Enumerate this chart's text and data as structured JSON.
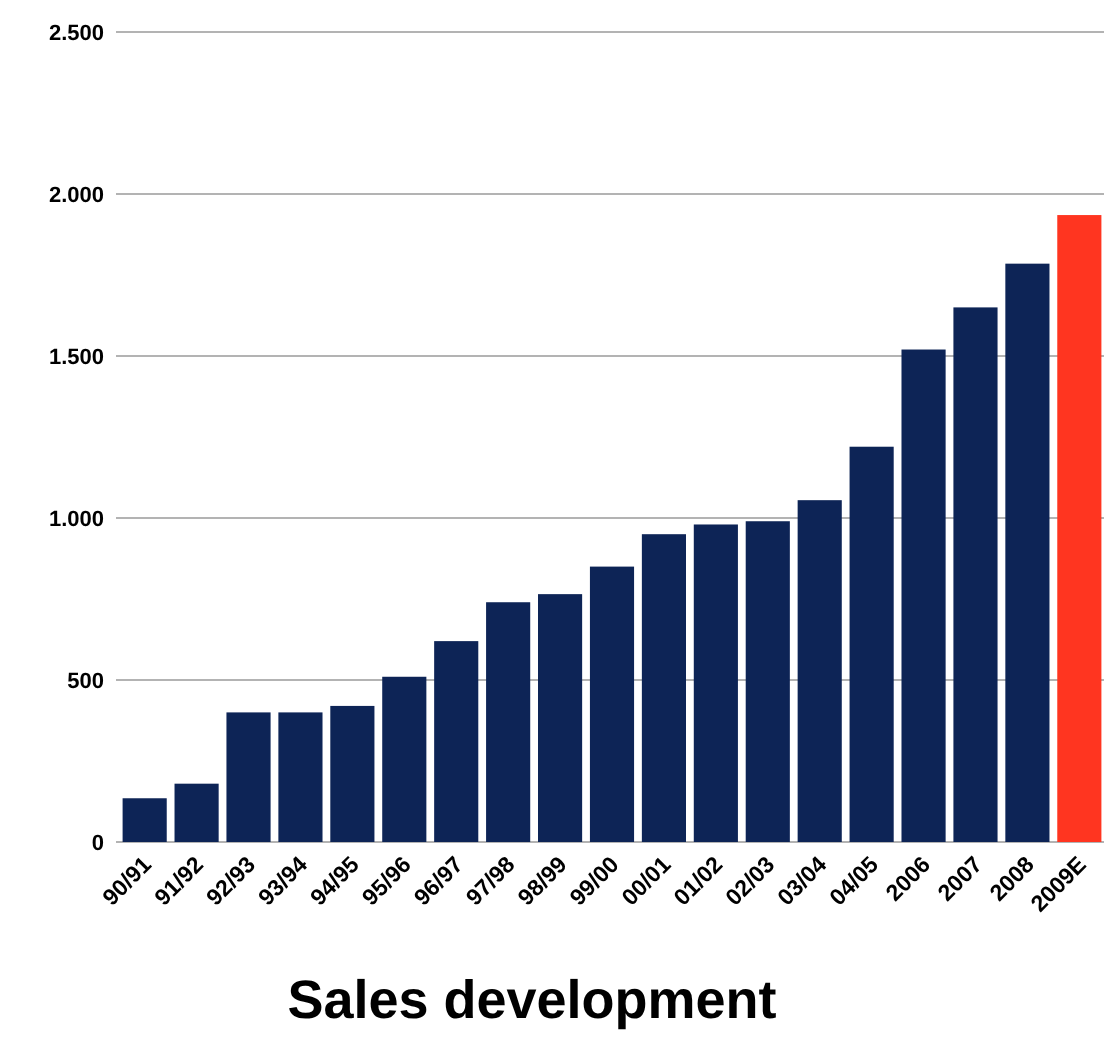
{
  "chart_data": {
    "type": "bar",
    "title": "Sales development",
    "categories": [
      "90/91",
      "91/92",
      "92/93",
      "93/94",
      "94/95",
      "95/96",
      "96/97",
      "97/98",
      "98/99",
      "99/00",
      "00/01",
      "01/02",
      "02/03",
      "03/04",
      "04/05",
      "2006",
      "2007",
      "2008",
      "2009E"
    ],
    "values": [
      135,
      180,
      400,
      400,
      420,
      510,
      620,
      740,
      765,
      850,
      950,
      980,
      990,
      1055,
      1220,
      1520,
      1650,
      1785,
      1935
    ],
    "colors": [
      "#0d2456",
      "#0d2456",
      "#0d2456",
      "#0d2456",
      "#0d2456",
      "#0d2456",
      "#0d2456",
      "#0d2456",
      "#0d2456",
      "#0d2456",
      "#0d2456",
      "#0d2456",
      "#0d2456",
      "#0d2456",
      "#0d2456",
      "#0d2456",
      "#0d2456",
      "#0d2456",
      "#ff3520"
    ],
    "ylim": [
      0,
      2500
    ],
    "yticks": [
      0,
      500,
      {
        "value": 1000,
        "label": "1.000"
      },
      {
        "value": 1500,
        "label": "1.500"
      },
      {
        "value": 2000,
        "label": "2.000"
      },
      {
        "value": 2500,
        "label": "2.500"
      }
    ],
    "grid": "y"
  }
}
